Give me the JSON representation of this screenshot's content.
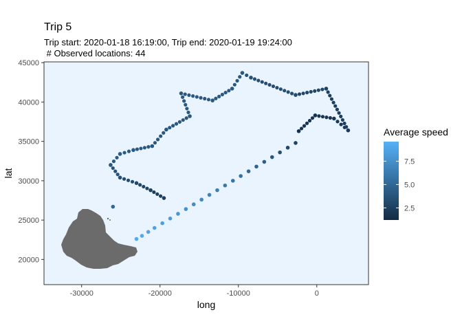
{
  "chart_data": {
    "type": "scatter",
    "title": "Trip 5",
    "subtitle_line1": "Trip start: 2020-01-18 16:19:00, Trip end: 2020-01-19 19:24:00",
    "subtitle_line2": " # Observed locations: 44",
    "xlabel": "long",
    "ylabel": "lat",
    "xlim": [
      -34800,
      6600
    ],
    "ylim": [
      16800,
      45100
    ],
    "x_ticks": [
      -30000,
      -20000,
      -10000,
      0
    ],
    "x_tick_labels": [
      "-30000",
      "-20000",
      "-10000",
      "0"
    ],
    "y_ticks": [
      20000,
      25000,
      30000,
      35000,
      40000,
      45000
    ],
    "y_tick_labels": [
      "20000",
      "25000",
      "30000",
      "35000",
      "40000",
      "45000"
    ],
    "panel_background": "#eaf4fe",
    "land_color": "#6b6b6b",
    "legend": {
      "title": "Average speed",
      "position": "right",
      "range": [
        1.2,
        9.6
      ],
      "breaks": [
        2.5,
        5.0,
        7.5
      ],
      "break_labels": [
        "2.5",
        "5.0",
        "7.5"
      ],
      "color_low": "#132b43",
      "color_high": "#56b1f7"
    },
    "points": [
      {
        "x": -23000,
        "y": 22600,
        "speed": 9.2
      },
      {
        "x": -22300,
        "y": 23000,
        "speed": 9.0
      },
      {
        "x": -21500,
        "y": 23500,
        "speed": 8.8
      },
      {
        "x": -20700,
        "y": 24000,
        "speed": 8.6
      },
      {
        "x": -19700,
        "y": 24600,
        "speed": 8.4
      },
      {
        "x": -18700,
        "y": 25200,
        "speed": 8.2
      },
      {
        "x": -17700,
        "y": 25800,
        "speed": 7.9
      },
      {
        "x": -16700,
        "y": 26400,
        "speed": 7.6
      },
      {
        "x": -15700,
        "y": 27000,
        "speed": 7.3
      },
      {
        "x": -14700,
        "y": 27600,
        "speed": 7.0
      },
      {
        "x": -13700,
        "y": 28200,
        "speed": 6.7
      },
      {
        "x": -12700,
        "y": 28800,
        "speed": 6.4
      },
      {
        "x": -11700,
        "y": 29400,
        "speed": 6.1
      },
      {
        "x": -10700,
        "y": 30000,
        "speed": 5.8
      },
      {
        "x": -9700,
        "y": 30600,
        "speed": 5.5
      },
      {
        "x": -8700,
        "y": 31200,
        "speed": 5.1
      },
      {
        "x": -7700,
        "y": 31800,
        "speed": 4.8
      },
      {
        "x": -6700,
        "y": 32400,
        "speed": 4.4
      },
      {
        "x": -5700,
        "y": 33000,
        "speed": 4.0
      },
      {
        "x": -4700,
        "y": 33600,
        "speed": 3.5
      },
      {
        "x": -3700,
        "y": 34200,
        "speed": 3.0
      },
      {
        "x": -2700,
        "y": 34800,
        "speed": 2.6
      },
      {
        "x": -2300,
        "y": 36300,
        "speed": 1.6
      },
      {
        "x": -200,
        "y": 38300,
        "speed": 1.8
      },
      {
        "x": 2200,
        "y": 37900,
        "speed": 2.0
      },
      {
        "x": 4000,
        "y": 36400,
        "speed": 2.2
      },
      {
        "x": 1200,
        "y": 41700,
        "speed": 2.6
      },
      {
        "x": -2700,
        "y": 40900,
        "speed": 3.2
      },
      {
        "x": -8400,
        "y": 43100,
        "speed": 3.6
      },
      {
        "x": -9500,
        "y": 43700,
        "speed": 3.9
      },
      {
        "x": -10800,
        "y": 41700,
        "speed": 4.1
      },
      {
        "x": -13300,
        "y": 40200,
        "speed": 4.1
      },
      {
        "x": -16200,
        "y": 38200,
        "speed": 4.0
      },
      {
        "x": -19200,
        "y": 36500,
        "speed": 3.9
      },
      {
        "x": -21000,
        "y": 34400,
        "speed": 4.0
      },
      {
        "x": -23400,
        "y": 33900,
        "speed": 4.1
      },
      {
        "x": -25100,
        "y": 33400,
        "speed": 4.2
      },
      {
        "x": -26300,
        "y": 32000,
        "speed": 4.0
      },
      {
        "x": -25100,
        "y": 30400,
        "speed": 3.4
      },
      {
        "x": -23000,
        "y": 29700,
        "speed": 3.0
      },
      {
        "x": -21200,
        "y": 28800,
        "speed": 2.6
      },
      {
        "x": -19500,
        "y": 27800,
        "speed": 2.3
      },
      {
        "x": -26000,
        "y": 26700,
        "speed": 5.0
      },
      {
        "x": -17300,
        "y": 41100,
        "speed": 4.0
      }
    ]
  }
}
